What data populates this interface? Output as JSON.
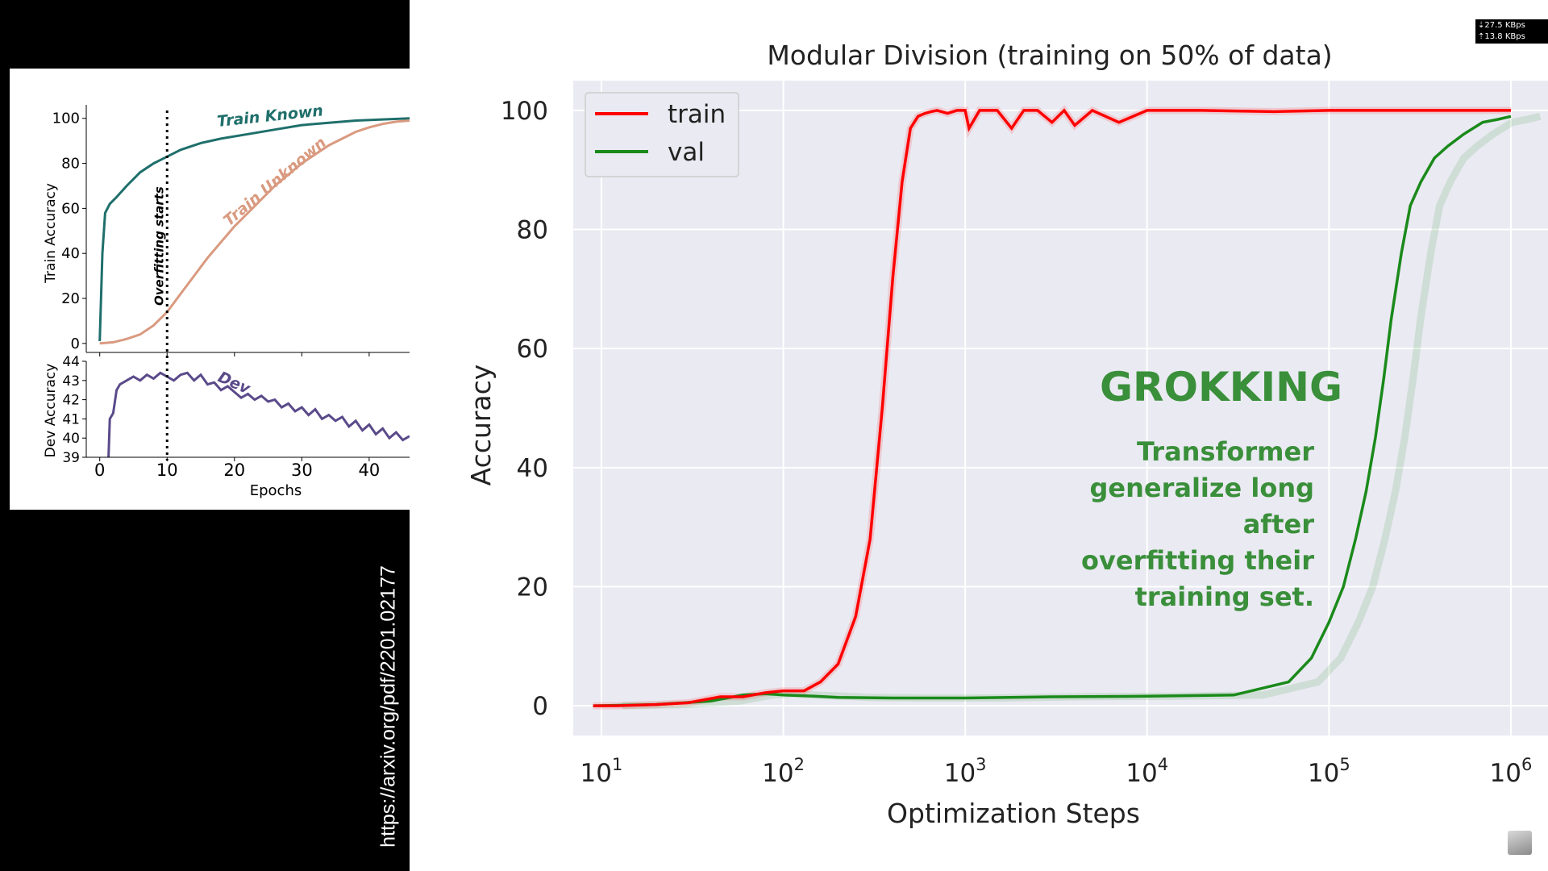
{
  "source_url": "https://arxiv.org/pdf/2201.02177",
  "network": {
    "download": "⇣27.5 KBps",
    "upload": "⇡13.8 KBps"
  },
  "icons": {
    "avatar": "user-avatar-icon"
  },
  "chart_data": [
    {
      "type": "line",
      "panel": "top",
      "title": "",
      "xlabel": "",
      "ylabel": "Train Accuracy",
      "xlim": [
        -2,
        46
      ],
      "ylim": [
        -4,
        106
      ],
      "yticks": [
        0,
        20,
        40,
        60,
        80,
        100
      ],
      "x_tick_labels_shown": false,
      "grid": false,
      "legend": "none",
      "series": [
        {
          "name": "Train Known",
          "color": "#1f6f6b",
          "x": [
            0,
            0.4,
            0.8,
            1.5,
            2.5,
            4,
            6,
            8,
            10,
            12,
            15,
            18,
            22,
            26,
            30,
            34,
            38,
            42,
            46
          ],
          "y": [
            1,
            40,
            58,
            62,
            65,
            70,
            76,
            80,
            83,
            86,
            89,
            91,
            93,
            95,
            97,
            98,
            99,
            99.5,
            100
          ]
        },
        {
          "name": "Train Unknown",
          "color": "#d99a80",
          "x": [
            0,
            2,
            4,
            6,
            8,
            10,
            12,
            14,
            16,
            18,
            20,
            22,
            24,
            26,
            28,
            30,
            32,
            34,
            36,
            38,
            40,
            42,
            44,
            46
          ],
          "y": [
            0,
            0.5,
            2,
            4,
            8,
            14,
            22,
            30,
            38,
            45,
            52,
            58,
            64,
            70,
            75,
            80,
            84,
            88,
            91,
            94,
            96,
            97.5,
            98.5,
            99
          ]
        }
      ],
      "annotations": [
        {
          "text": "Overfitting starts",
          "x": 10,
          "style": "dotted-vertical-line"
        }
      ]
    },
    {
      "type": "line",
      "panel": "bottom",
      "title": "",
      "xlabel": "Epochs",
      "ylabel": "Dev Accuracy",
      "xlim": [
        -2,
        46
      ],
      "ylim": [
        39,
        44
      ],
      "xticks": [
        0,
        10,
        20,
        30,
        40
      ],
      "yticks": [
        39,
        40,
        41,
        42,
        43,
        44
      ],
      "grid": false,
      "legend": "none",
      "series": [
        {
          "name": "Dev",
          "color": "#5a4a8a",
          "x": [
            1.3,
            1.5,
            2,
            2.5,
            3,
            4,
            5,
            6,
            7,
            8,
            9,
            10,
            11,
            12,
            13,
            14,
            15,
            16,
            17,
            18,
            19,
            20,
            21,
            22,
            23,
            24,
            25,
            26,
            27,
            28,
            29,
            30,
            31,
            32,
            33,
            34,
            35,
            36,
            37,
            38,
            39,
            40,
            41,
            42,
            43,
            44,
            45,
            46
          ],
          "y": [
            39,
            41,
            41.3,
            42.5,
            42.8,
            43.0,
            43.2,
            43.0,
            43.3,
            43.1,
            43.4,
            43.2,
            43.0,
            43.3,
            43.4,
            43.0,
            43.3,
            42.8,
            42.9,
            42.5,
            42.7,
            42.4,
            42.1,
            42.3,
            42.0,
            42.2,
            41.9,
            42.0,
            41.6,
            41.8,
            41.4,
            41.6,
            41.2,
            41.5,
            41.0,
            41.2,
            40.9,
            41.1,
            40.6,
            40.9,
            40.4,
            40.7,
            40.2,
            40.5,
            40.0,
            40.3,
            39.9,
            40.1
          ]
        }
      ]
    },
    {
      "type": "line",
      "panel": "right",
      "title": "Modular Division (training on 50% of data)",
      "xlabel": "Optimization Steps",
      "ylabel": "Accuracy",
      "xscale": "log",
      "xlim": [
        7,
        1600000
      ],
      "ylim": [
        -5,
        105
      ],
      "yticks": [
        0,
        20,
        40,
        60,
        80,
        100
      ],
      "xticks": [
        10,
        100,
        1000,
        10000,
        100000,
        1000000
      ],
      "x_tick_labels": [
        {
          "base": "10",
          "exp": "1"
        },
        {
          "base": "10",
          "exp": "2"
        },
        {
          "base": "10",
          "exp": "3"
        },
        {
          "base": "10",
          "exp": "4"
        },
        {
          "base": "10",
          "exp": "5"
        },
        {
          "base": "10",
          "exp": "6"
        }
      ],
      "grid": true,
      "legend": "top-left",
      "series": [
        {
          "name": "train",
          "color": "#ff0000",
          "x": [
            9,
            12,
            20,
            30,
            45,
            60,
            80,
            100,
            130,
            160,
            200,
            250,
            300,
            350,
            400,
            450,
            500,
            550,
            600,
            650,
            700,
            800,
            900,
            1000,
            1050,
            1200,
            1500,
            1800,
            2100,
            2500,
            3000,
            3500,
            4000,
            5000,
            7000,
            10000,
            20000,
            50000,
            100000,
            300000,
            1000000
          ],
          "y": [
            0,
            0,
            0.2,
            0.5,
            1.5,
            1.5,
            2.2,
            2.5,
            2.5,
            4,
            7,
            15,
            28,
            50,
            72,
            88,
            97,
            99,
            99.5,
            99.8,
            100,
            99.5,
            100,
            100,
            97,
            100,
            100,
            97,
            100,
            100,
            98,
            100,
            97.5,
            100,
            98,
            100,
            100,
            99.8,
            100,
            100,
            100
          ]
        },
        {
          "name": "val",
          "color": "#1a8a1a",
          "x": [
            9,
            20,
            40,
            60,
            80,
            100,
            150,
            200,
            400,
            1000,
            3000,
            10000,
            30000,
            60000,
            80000,
            100000,
            120000,
            140000,
            160000,
            180000,
            200000,
            220000,
            250000,
            280000,
            320000,
            380000,
            450000,
            550000,
            700000,
            850000,
            1000000
          ],
          "y": [
            0,
            0.2,
            0.8,
            1.8,
            2.0,
            1.8,
            1.6,
            1.4,
            1.3,
            1.3,
            1.5,
            1.6,
            1.8,
            4,
            8,
            14,
            20,
            28,
            36,
            45,
            55,
            65,
            76,
            84,
            88,
            92,
            94,
            96,
            98,
            98.5,
            99
          ]
        }
      ],
      "annotations": [
        {
          "text": "GROKKING",
          "lines": [
            "Transformer",
            "generalize long",
            "after",
            "overfitting their",
            "training set."
          ]
        }
      ]
    }
  ]
}
